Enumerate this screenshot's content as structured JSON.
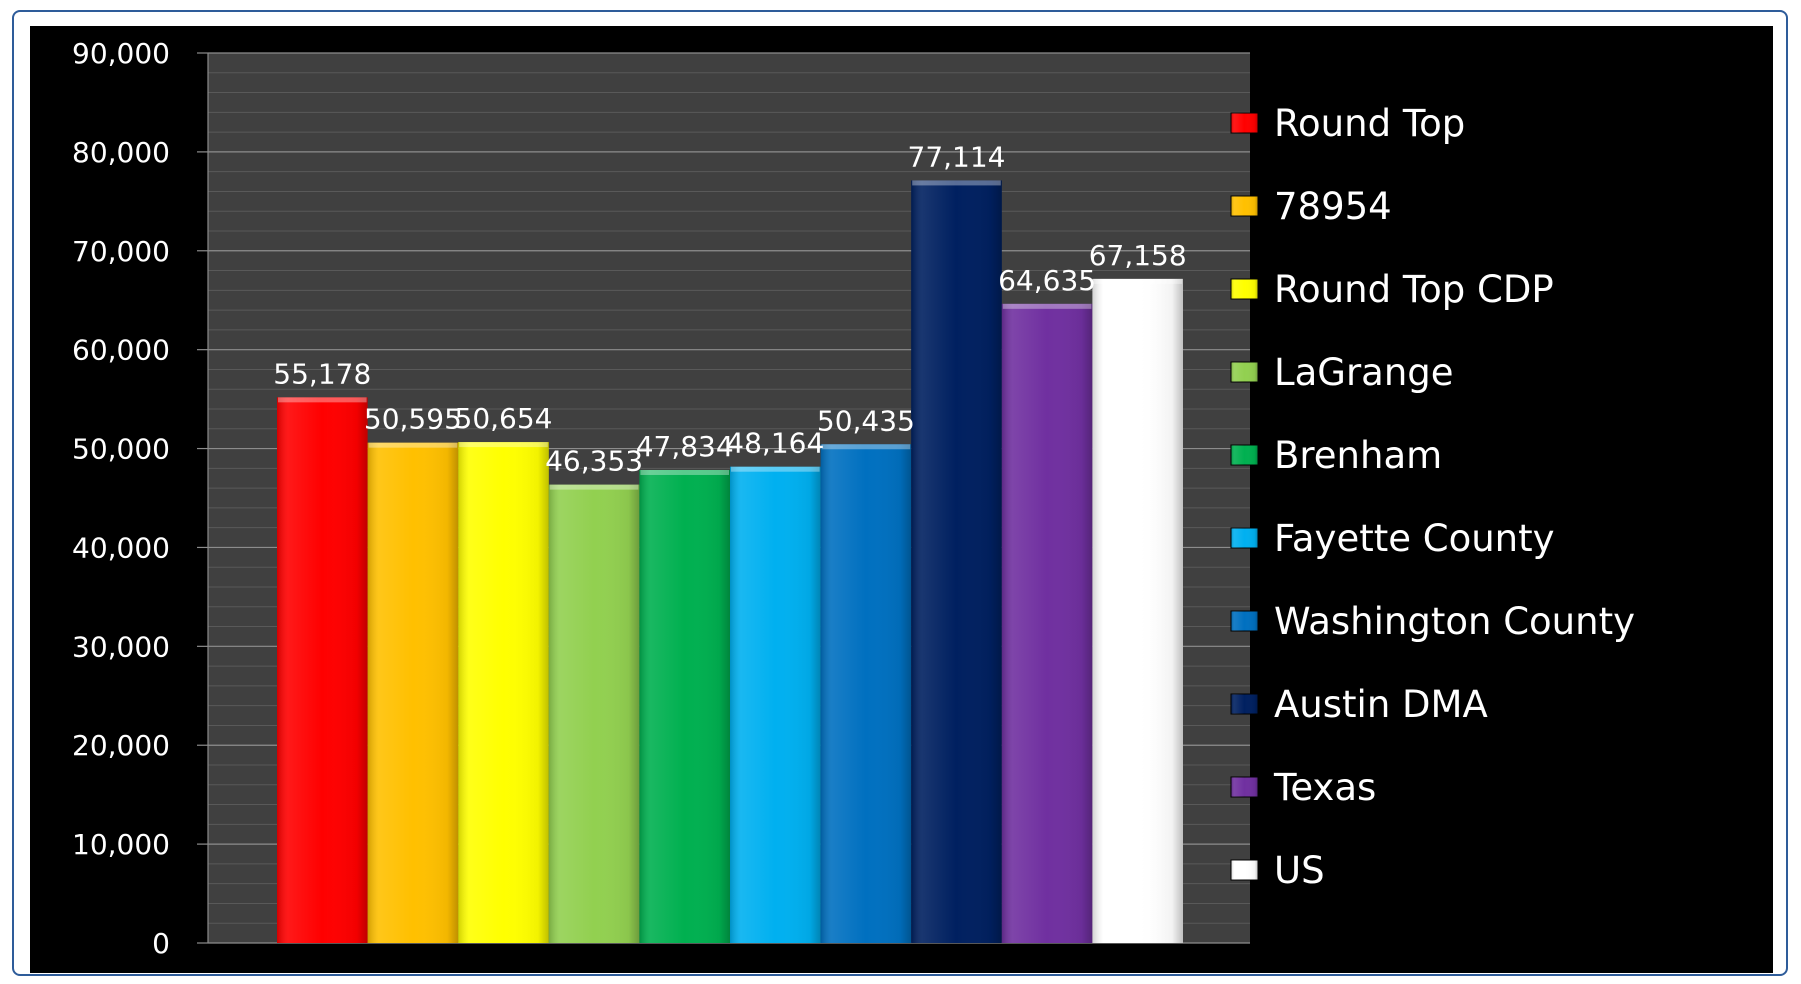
{
  "chart_data": {
    "type": "bar",
    "title": "",
    "xlabel": "",
    "ylabel": "",
    "ylim": [
      0,
      90000
    ],
    "ytick_labels": [
      "0",
      "10,000",
      "20,000",
      "30,000",
      "40,000",
      "50,000",
      "60,000",
      "70,000",
      "80,000",
      "90,000"
    ],
    "grid": true,
    "legend_position": "right",
    "series": [
      {
        "name": "Round Top",
        "value": 55178,
        "label": "55,178",
        "color": "#ff0000"
      },
      {
        "name": "78954",
        "value": 50595,
        "label": "50,595",
        "color": "#ffc000"
      },
      {
        "name": "Round Top CDP",
        "value": 50654,
        "label": "50,654",
        "color": "#ffff00"
      },
      {
        "name": "LaGrange",
        "value": 46353,
        "label": "46,353",
        "color": "#92d050"
      },
      {
        "name": "Brenham",
        "value": 47834,
        "label": "47,834",
        "color": "#00b050"
      },
      {
        "name": "Fayette County",
        "value": 48164,
        "label": "48,164",
        "color": "#00b0f0"
      },
      {
        "name": "Washington County",
        "value": 50435,
        "label": "50,435",
        "color": "#0070c0"
      },
      {
        "name": "Austin DMA",
        "value": 77114,
        "label": "77,114",
        "color": "#002060"
      },
      {
        "name": "Texas",
        "value": 64635,
        "label": "64,635",
        "color": "#7030a0"
      },
      {
        "name": "US",
        "value": 67158,
        "label": "67,158",
        "color": "#ffffff"
      }
    ]
  },
  "colors": {
    "page_background": "#000000",
    "plot_background": "#404040",
    "gridline": "#8c8c8c",
    "frame_border": "#2e5c9a"
  }
}
